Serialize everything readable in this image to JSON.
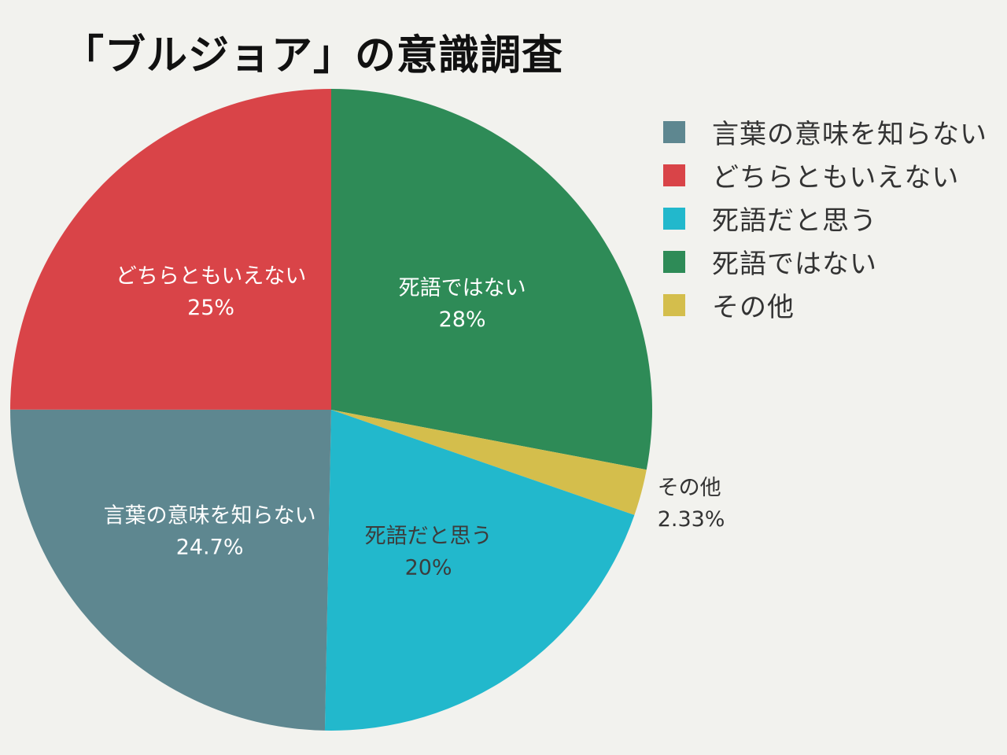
{
  "chart_data": {
    "type": "pie",
    "title": "「ブルジョア」の意識調査",
    "legend_position": "right",
    "slices": [
      {
        "label": "言葉の意味を知らない",
        "value": 24.7,
        "display": "24.7%",
        "color": "#5e8790",
        "label_color": "#ffffff"
      },
      {
        "label": "どちらともいえない",
        "value": 25,
        "display": "25%",
        "color": "#d94448",
        "label_color": "#ffffff"
      },
      {
        "label": "死語だと思う",
        "value": 20,
        "display": "20%",
        "color": "#22b8cc",
        "label_color": "#3c3c3c"
      },
      {
        "label": "死語ではない",
        "value": 28,
        "display": "28%",
        "color": "#2e8b57",
        "label_color": "#ffffff"
      },
      {
        "label": "その他",
        "value": 2.33,
        "display": "2.33%",
        "color": "#d4be4c",
        "label_color": "#333333"
      }
    ]
  }
}
